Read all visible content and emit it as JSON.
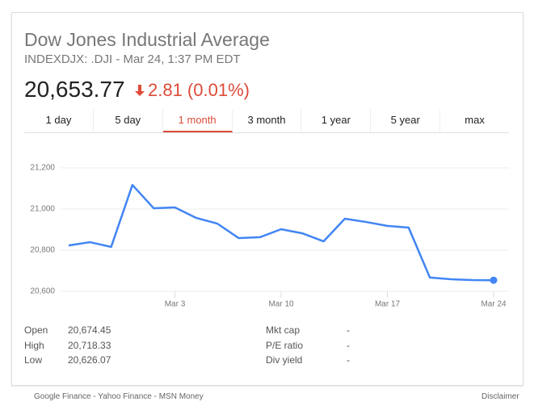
{
  "header": {
    "title": "Dow Jones Industrial Average",
    "subtitle": "INDEXDJX: .DJI - Mar 24, 1:37 PM EDT",
    "price": "20,653.77",
    "change": "2.81 (0.01%)"
  },
  "tabs": [
    "1 day",
    "5 day",
    "1 month",
    "3 month",
    "1 year",
    "5 year",
    "max"
  ],
  "active_tab": 2,
  "chart_data": {
    "type": "line",
    "categories": [
      null,
      null,
      null,
      null,
      null,
      "Mar 3",
      null,
      null,
      null,
      null,
      "Mar 10",
      null,
      null,
      null,
      null,
      "Mar 17",
      null,
      null,
      null,
      null,
      "Mar 24"
    ],
    "series": [
      {
        "color": "#4285f4",
        "values": [
          20823,
          20839,
          20816,
          21117,
          21004,
          21008,
          20957,
          20929,
          20859,
          20863,
          20902,
          20882,
          20843,
          20953,
          20937,
          20918,
          20910,
          20667,
          20659,
          20655,
          20654
        ]
      }
    ],
    "ylim": [
      20600,
      21200
    ],
    "yticks": [
      {
        "value": 20600,
        "label": "20,600"
      },
      {
        "value": 20800,
        "label": "20,800"
      },
      {
        "value": 21000,
        "label": "21,000"
      },
      {
        "value": 21200,
        "label": "21,200"
      }
    ],
    "grid": true
  },
  "stats": [
    [
      "Open",
      "20,674.45"
    ],
    [
      "High",
      "20,718.33"
    ],
    [
      "Low",
      "20,626.07"
    ],
    [
      "Mkt cap",
      "-"
    ],
    [
      "P/E ratio",
      "-"
    ],
    [
      "Div yield",
      "-"
    ]
  ],
  "footer": {
    "sources": "Google Finance - Yahoo Finance - MSN Money",
    "disclaimer": "Disclaimer"
  }
}
